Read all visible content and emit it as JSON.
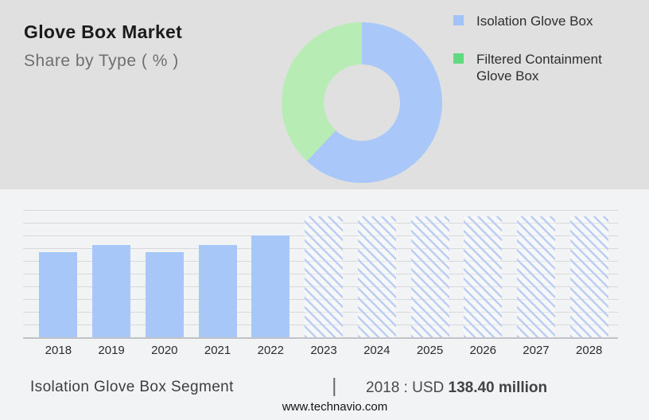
{
  "header": {
    "title": "Glove Box Market",
    "subtitle": "Share by Type ( % )"
  },
  "legend": {
    "items": [
      {
        "label": "Isolation Glove Box",
        "swatch_color": "#a3c3f8"
      },
      {
        "label": "Filtered Containment Glove Box",
        "swatch_color": "#62da84"
      }
    ]
  },
  "chart_data": [
    {
      "type": "pie",
      "donut": true,
      "title": "Glove Box Market Share by Type ( % )",
      "labels": [
        "Isolation Glove Box",
        "Filtered Containment Glove Box"
      ],
      "values": [
        62,
        38
      ],
      "colors": [
        "#a9c8f9",
        "#b7ecb4"
      ],
      "legend_position": "right"
    },
    {
      "type": "bar",
      "categories": [
        "2018",
        "2019",
        "2020",
        "2021",
        "2022",
        "2023",
        "2024",
        "2025",
        "2026",
        "2027",
        "2028"
      ],
      "values": [
        138.4,
        150,
        138.5,
        149.5,
        165,
        null,
        null,
        null,
        null,
        null,
        null
      ],
      "forecast_categories": [
        "2023",
        "2024",
        "2025",
        "2026",
        "2027",
        "2028"
      ],
      "ylim": [
        0,
        200
      ],
      "unit": "USD million",
      "bar_color": "#a6c7f7",
      "grid": true,
      "xlabel": "",
      "ylabel": ""
    }
  ],
  "footer": {
    "segment_label": "Isolation Glove Box Segment",
    "separator": "|",
    "value_prefix": "2018 : USD",
    "value_bold": "138.40 million",
    "website": "www.technavio.com"
  },
  "colors": {
    "top_bg": "#e0e0e0",
    "bottom_bg": "#f2f3f5",
    "donut_blue": "#a9c8f9",
    "donut_green": "#b7ecb4",
    "legend_blue": "#a3c3f8",
    "legend_green": "#62da84",
    "bar_blue": "#a6c7f7",
    "hatch_line": "#bccff3",
    "gridline": "#d7d8dc",
    "axis_line": "#c2c3c9"
  }
}
